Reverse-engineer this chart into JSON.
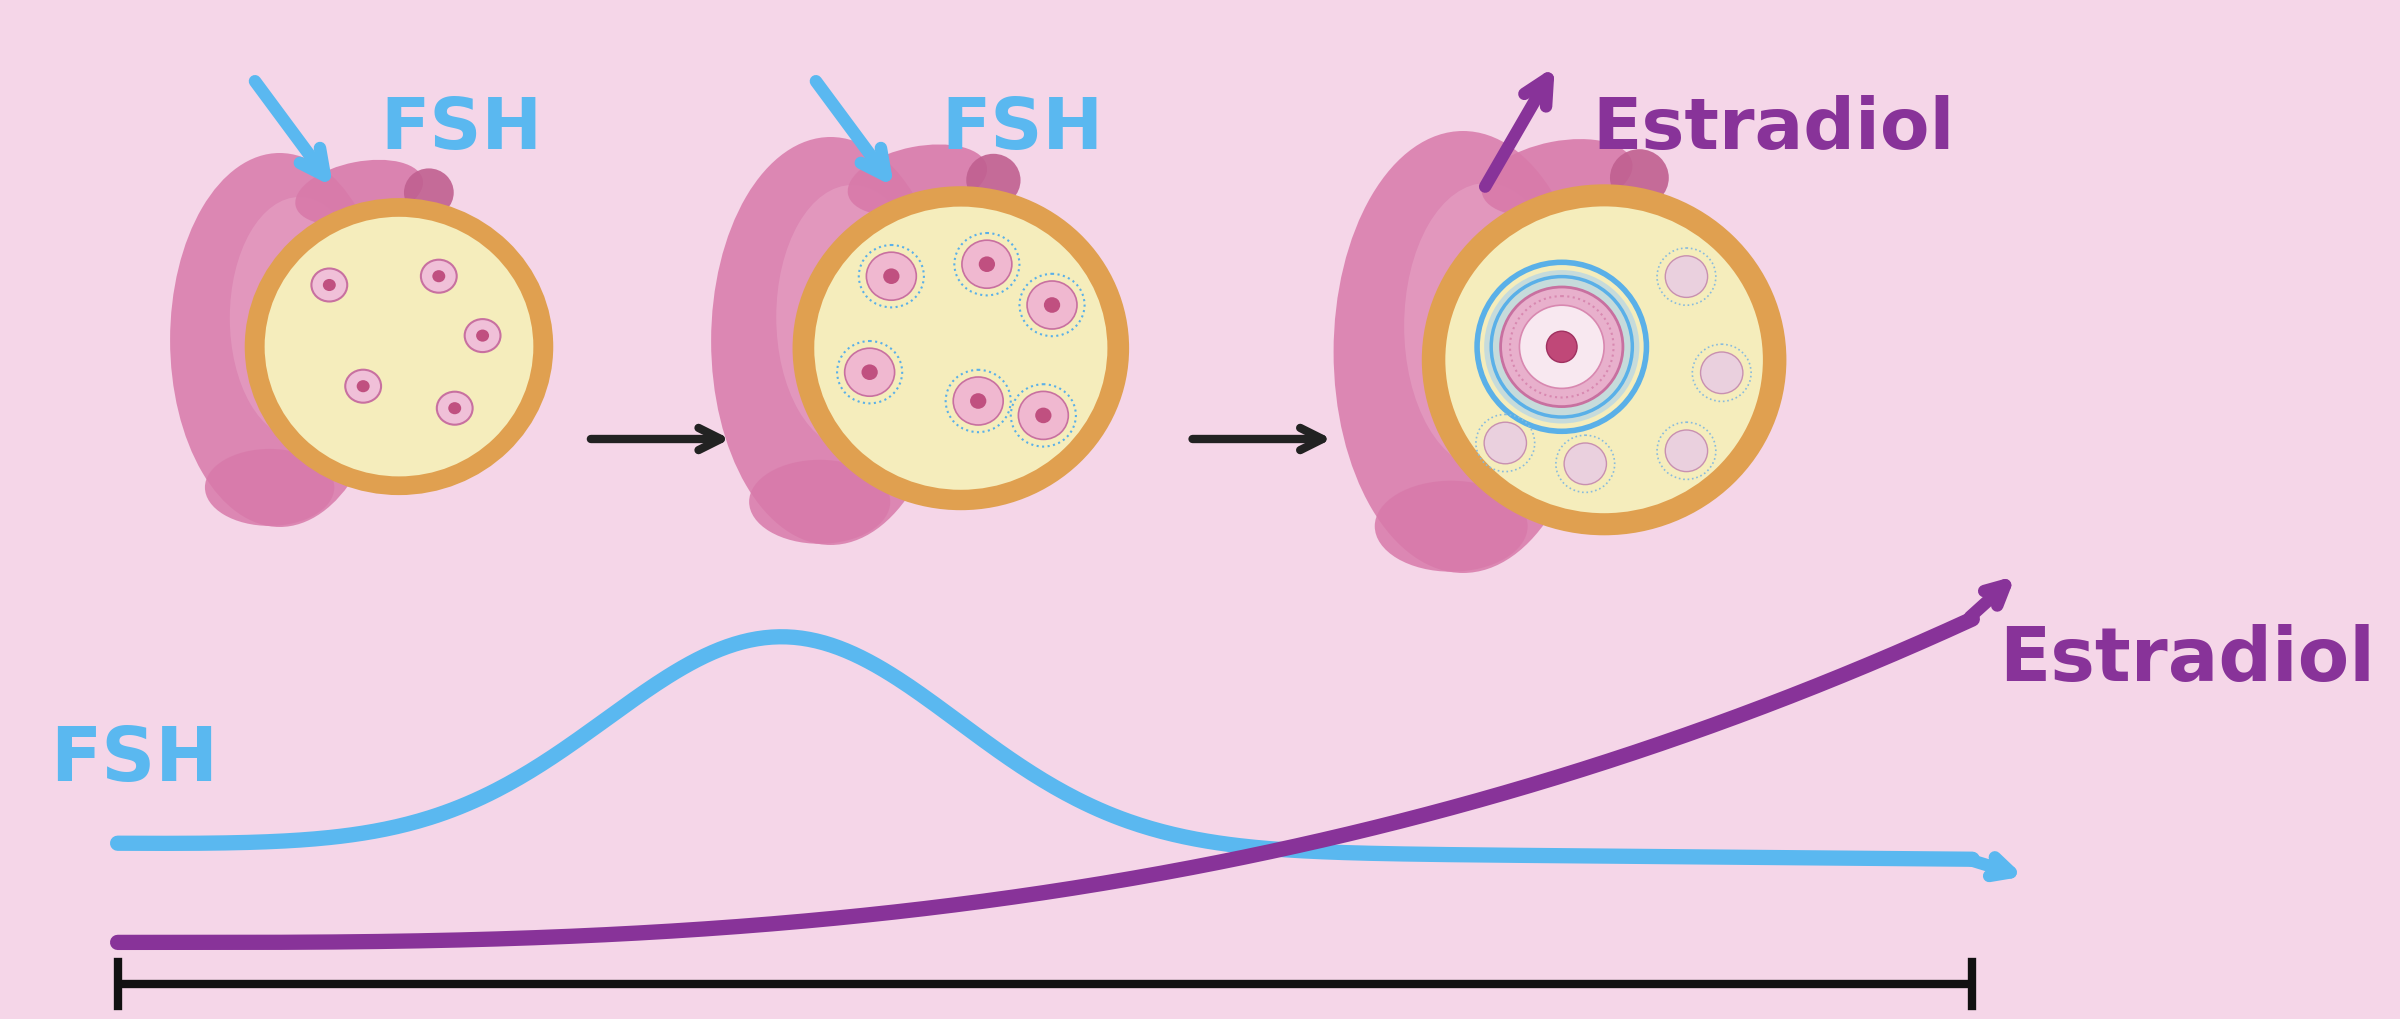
{
  "bg_color": "#f5d6e8",
  "fsh_color": "#5ab8f0",
  "estradiol_color": "#883399",
  "arrow_black": "#222222",
  "ovary_body_color": "#d87aaa",
  "ovary_body_dark": "#c06090",
  "ovary_ring_color": "#e0a050",
  "ovary_inner_color": "#f5edbc",
  "follicle_fill": "#e8a8c8",
  "follicle_border": "#c870a0",
  "follicle_dot": "#c05080",
  "dominant_blue": "#5ab0e8",
  "dominant_fill": "#eec8dc",
  "dominant_inner": "#e890b8",
  "dominant_center": "#c04878",
  "small_follicle_fill": "#e0bcd0",
  "graph_bg": "#f5d6e8",
  "title_fsh": "FSH",
  "title_estradiol": "Estradiol",
  "fsh_label": "FSH",
  "estradiol_label": "Estradiol"
}
